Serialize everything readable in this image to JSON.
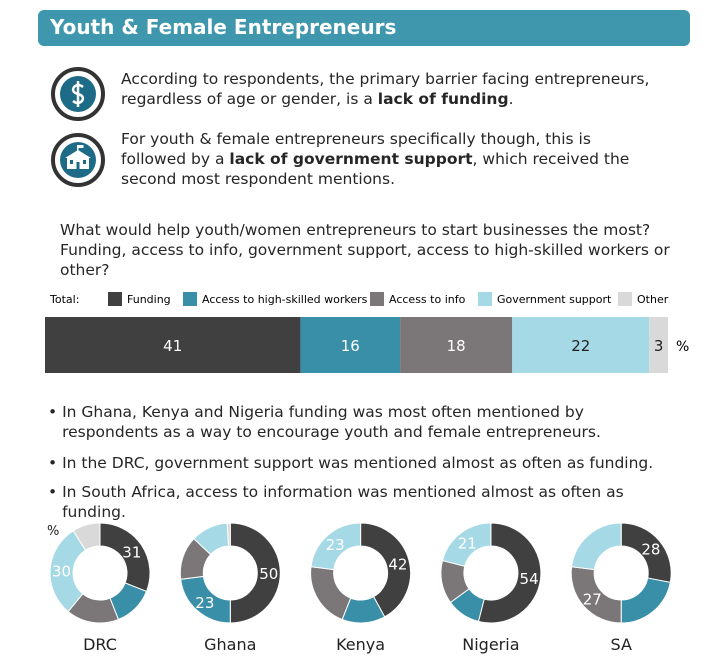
{
  "header": {
    "title": "Youth & Female Entrepreneurs"
  },
  "points": [
    {
      "before": "According to respondents, the primary barrier facing entrepreneurs, regardless of age or gender, is a ",
      "bold": "lack of funding",
      "after": "."
    },
    {
      "before": "For youth & female entrepreneurs specifically though, this is followed by a ",
      "bold": "lack of government support",
      "after": ", which received the second most respondent mentions."
    }
  ],
  "question": "What would help youth/women entrepreneurs to start businesses the most? Funding, access to info, government support, access to high-skilled workers or other?",
  "bullets": [
    "In Ghana, Kenya and Nigeria funding was most often mentioned by respondents as a way to encourage youth and female entrepreneurs.",
    "In the DRC, government support was mentioned almost as often as funding.",
    "In South Africa, access to information was mentioned almost as often as funding."
  ],
  "chart_data": [
    {
      "type": "stacked-bar",
      "label": "Total:",
      "unit": "%",
      "series": [
        {
          "name": "Funding",
          "color": "#404040",
          "values": [
            41
          ]
        },
        {
          "name": "Access to high-skilled workers",
          "color": "#3a8fa8",
          "values": [
            16
          ]
        },
        {
          "name": "Access to info",
          "color": "#7b7778",
          "values": [
            18
          ]
        },
        {
          "name": "Government support",
          "color": "#a6d9e6",
          "values": [
            22
          ]
        },
        {
          "name": "Other",
          "color": "#d9d9d9",
          "values": [
            3
          ]
        }
      ]
    },
    {
      "type": "donut",
      "title": "DRC",
      "unit": "%",
      "values": [
        31,
        13,
        17,
        30,
        9
      ],
      "value_labels": [
        "31",
        null,
        null,
        "30",
        null
      ]
    },
    {
      "type": "donut",
      "title": "Ghana",
      "values": [
        50,
        23,
        14,
        12,
        1
      ],
      "value_labels": [
        "50",
        "23",
        null,
        null,
        null
      ]
    },
    {
      "type": "donut",
      "title": "Kenya",
      "values": [
        42,
        14,
        21,
        23,
        0
      ],
      "value_labels": [
        "42",
        null,
        null,
        "23",
        null
      ]
    },
    {
      "type": "donut",
      "title": "Nigeria",
      "values": [
        54,
        11,
        14,
        21,
        0
      ],
      "value_labels": [
        "54",
        null,
        null,
        "21",
        null
      ]
    },
    {
      "type": "donut",
      "title": "SA",
      "values": [
        28,
        22,
        27,
        23,
        0
      ],
      "value_labels": [
        "28",
        null,
        "27",
        null,
        null
      ]
    }
  ]
}
